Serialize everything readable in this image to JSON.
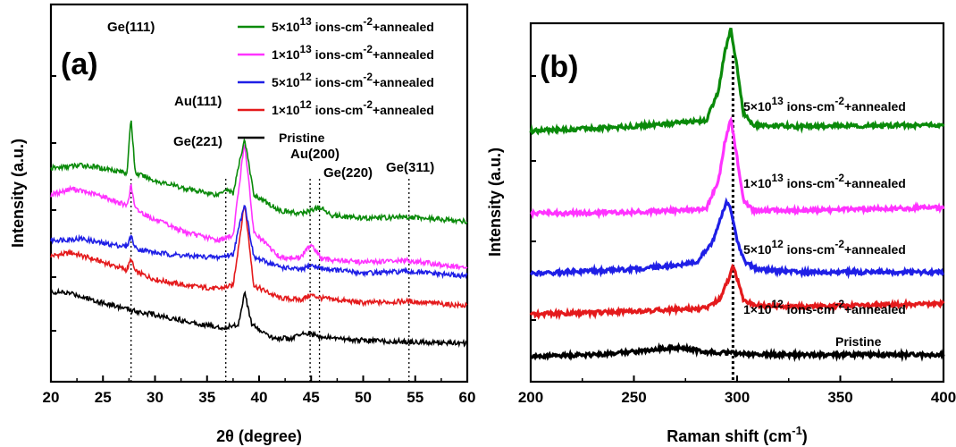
{
  "chart_data": [
    {
      "type": "line",
      "panel_label": "(a)",
      "xlabel": "2θ (degree)",
      "ylabel": "Intensity (a.u.)",
      "xlim": [
        20,
        60
      ],
      "xticks": [
        20,
        25,
        30,
        35,
        40,
        45,
        50,
        55,
        60
      ],
      "legend": "top-right",
      "reference_lines_x": [
        27.7,
        36.8,
        44.9,
        45.8,
        54.4
      ],
      "peak_labels": [
        {
          "text": "Ge(111)",
          "x": 27.7
        },
        {
          "text": "Au(111)",
          "x": 38.6
        },
        {
          "text": "Ge(221)",
          "x": 36.8
        },
        {
          "text": "Au(200)",
          "x": 44.9
        },
        {
          "text": "Ge(220)",
          "x": 45.8
        },
        {
          "text": "Ge(311)",
          "x": 54.4
        }
      ],
      "series": [
        {
          "name_prefix": "1×10",
          "exp": "12",
          "name_mid": " ions-cm",
          "name_sup": "-2",
          "name_suffix": "+annealed",
          "color": "#e41a1c",
          "points": [
            [
              20,
              65
            ],
            [
              22,
              67
            ],
            [
              25,
              61
            ],
            [
              27.3,
              56
            ],
            [
              27.7,
              63
            ],
            [
              28.1,
              55
            ],
            [
              30,
              50
            ],
            [
              33,
              46
            ],
            [
              36,
              44
            ],
            [
              37.5,
              46
            ],
            [
              38.6,
              99
            ],
            [
              39.5,
              46
            ],
            [
              42,
              38
            ],
            [
              44,
              37
            ],
            [
              45,
              40
            ],
            [
              46,
              38
            ],
            [
              50,
              35
            ],
            [
              54.4,
              36
            ],
            [
              60,
              33
            ]
          ]
        },
        {
          "name_prefix": "5×10",
          "exp": "12",
          "name_mid": " ions-cm",
          "name_sup": "-2",
          "name_suffix": "+annealed",
          "color": "#1f1fe6",
          "points": [
            [
              20,
              75
            ],
            [
              23,
              76
            ],
            [
              25,
              73
            ],
            [
              27.3,
              71
            ],
            [
              27.7,
              78
            ],
            [
              28.1,
              70
            ],
            [
              30,
              67
            ],
            [
              33,
              65
            ],
            [
              36,
              64
            ],
            [
              37.5,
              66
            ],
            [
              38.6,
              99
            ],
            [
              39.5,
              64
            ],
            [
              42,
              58
            ],
            [
              44,
              56
            ],
            [
              45,
              59
            ],
            [
              46,
              57
            ],
            [
              50,
              54
            ],
            [
              54.4,
              55
            ],
            [
              60,
              52
            ]
          ]
        },
        {
          "name_prefix": "1×10",
          "exp": "13",
          "name_mid": " ions-cm",
          "name_sup": "-2",
          "name_suffix": "+annealed",
          "color": "#ff33ff",
          "points": [
            [
              20,
              104
            ],
            [
              22,
              108
            ],
            [
              25,
              103
            ],
            [
              27.3,
              97
            ],
            [
              27.7,
              110
            ],
            [
              28.1,
              95
            ],
            [
              30,
              88
            ],
            [
              33,
              80
            ],
            [
              36,
              75
            ],
            [
              37.5,
              78
            ],
            [
              38.6,
              138
            ],
            [
              39.5,
              80
            ],
            [
              42,
              64
            ],
            [
              44,
              64
            ],
            [
              45,
              73
            ],
            [
              46,
              63
            ],
            [
              50,
              61
            ],
            [
              54.4,
              62
            ],
            [
              60,
              57
            ]
          ]
        },
        {
          "name_prefix": "5×10",
          "exp": "13",
          "name_mid": " ions-cm",
          "name_sup": "-2",
          "name_suffix": "+annealed",
          "color": "#0a8a0a",
          "points": [
            [
              20,
              121
            ],
            [
              23,
              123
            ],
            [
              26,
              120
            ],
            [
              27.3,
              118
            ],
            [
              27.7,
              153
            ],
            [
              28.1,
              118
            ],
            [
              30,
              113
            ],
            [
              33,
              108
            ],
            [
              36,
              104
            ],
            [
              36.8,
              108
            ],
            [
              37.5,
              105
            ],
            [
              38.6,
              140
            ],
            [
              39.5,
              104
            ],
            [
              42,
              94
            ],
            [
              44,
              92
            ],
            [
              45.8,
              96
            ],
            [
              47,
              91
            ],
            [
              50,
              89
            ],
            [
              54.4,
              90
            ],
            [
              60,
              87
            ]
          ]
        },
        {
          "name": "Pristine",
          "color": "#000000",
          "points": [
            [
              20,
              42
            ],
            [
              22,
              41
            ],
            [
              25,
              35
            ],
            [
              28,
              30
            ],
            [
              31,
              26
            ],
            [
              34,
              22
            ],
            [
              36.5,
              19
            ],
            [
              38,
              21
            ],
            [
              38.6,
              42
            ],
            [
              39.3,
              21
            ],
            [
              41,
              13
            ],
            [
              43,
              12
            ],
            [
              44.5,
              16
            ],
            [
              46,
              13
            ],
            [
              50,
              11
            ],
            [
              55,
              10
            ],
            [
              60,
              9
            ]
          ]
        }
      ]
    },
    {
      "type": "line",
      "panel_label": "(b)",
      "xlabel": "Raman shift (cm",
      "xlabel_sup": "-1",
      "xlabel_end": ")",
      "ylabel": "Intensity (a.u.)",
      "xlim": [
        200,
        400
      ],
      "xticks": [
        200,
        250,
        300,
        350,
        400
      ],
      "reference_lines_x": [
        298
      ],
      "series": [
        {
          "name": "Pristine",
          "color": "#000000",
          "points": [
            [
              200,
              8
            ],
            [
              230,
              9
            ],
            [
              250,
              11
            ],
            [
              270,
              14
            ],
            [
              285,
              11
            ],
            [
              300,
              10
            ],
            [
              320,
              9
            ],
            [
              350,
              9
            ],
            [
              400,
              9
            ]
          ]
        },
        {
          "name_prefix": "1×10",
          "exp": "12",
          "name_mid": " ions-cm",
          "name_sup": "-2",
          "name_suffix": "+annealed",
          "color": "#e41a1c",
          "points": [
            [
              200,
              36
            ],
            [
              250,
              38
            ],
            [
              285,
              40
            ],
            [
              292,
              47
            ],
            [
              296,
              60
            ],
            [
              298,
              68
            ],
            [
              300,
              60
            ],
            [
              303,
              46
            ],
            [
              308,
              42
            ],
            [
              330,
              41
            ],
            [
              400,
              43
            ]
          ]
        },
        {
          "name_prefix": "5×10",
          "exp": "12",
          "name_mid": " ions-cm",
          "name_sup": "-2",
          "name_suffix": "+annealed",
          "color": "#1f1fe6",
          "points": [
            [
              200,
              63
            ],
            [
              250,
              66
            ],
            [
              280,
              70
            ],
            [
              288,
              84
            ],
            [
              292,
              100
            ],
            [
              295,
              111
            ],
            [
              297,
              106
            ],
            [
              300,
              85
            ],
            [
              304,
              70
            ],
            [
              310,
              66
            ],
            [
              330,
              64
            ],
            [
              400,
              64
            ]
          ]
        },
        {
          "name_prefix": "1×10",
          "exp": "13",
          "name_mid": " ions-cm",
          "name_sup": "-2",
          "name_suffix": "+annealed",
          "color": "#ff33ff",
          "points": [
            [
              200,
              103
            ],
            [
              250,
              104
            ],
            [
              285,
              106
            ],
            [
              291,
              125
            ],
            [
              294,
              150
            ],
            [
              297,
              166
            ],
            [
              300,
              140
            ],
            [
              303,
              112
            ],
            [
              308,
              105
            ],
            [
              330,
              105
            ],
            [
              400,
              107
            ]
          ]
        },
        {
          "name_prefix": "5×10",
          "exp": "13",
          "name_mid": " ions-cm",
          "name_sup": "-2",
          "name_suffix": "+annealed",
          "color": "#0a8a0a",
          "points": [
            [
              200,
              158
            ],
            [
              250,
              161
            ],
            [
              285,
              165
            ],
            [
              291,
              185
            ],
            [
              294,
              210
            ],
            [
              297,
              226
            ],
            [
              300,
              200
            ],
            [
              303,
              170
            ],
            [
              308,
              162
            ],
            [
              330,
              161
            ],
            [
              400,
              162
            ]
          ]
        }
      ]
    }
  ]
}
